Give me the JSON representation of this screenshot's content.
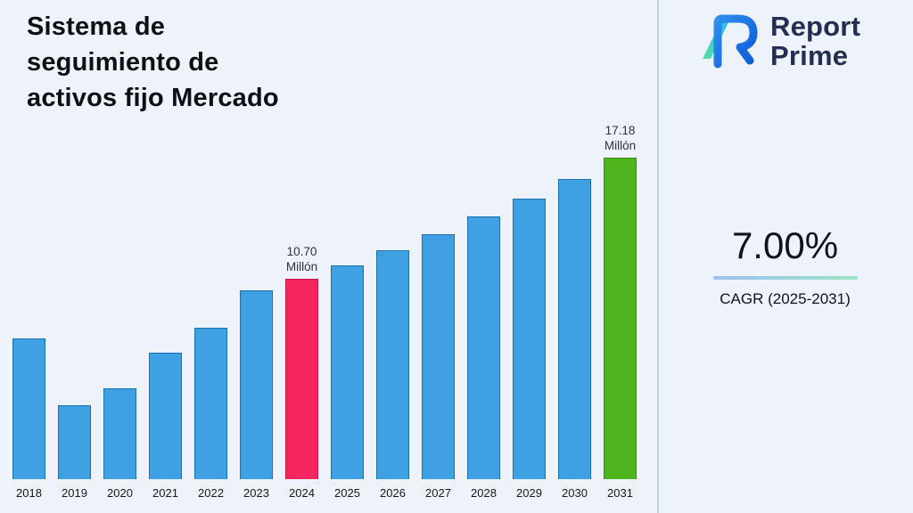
{
  "title": {
    "full": "Sistema de seguimiento de activos fijo Mercado",
    "line1": "Sistema de",
    "line2": "seguimiento de",
    "line3": "activos fijo Mercado"
  },
  "brand": {
    "line1": "Report",
    "line2": "Prime"
  },
  "stats": {
    "cagr_value": "7.00%",
    "cagr_label": "CAGR (2025-2031)"
  },
  "colors": {
    "background": "#edf2fb",
    "divider": "#b9cff1",
    "bar_blue": "#3fa0e2",
    "bar_pink": "#f5265f",
    "bar_green": "#4eb51d",
    "brand_navy": "#242e52"
  },
  "chart_data": {
    "type": "bar",
    "title": "Sistema de seguimiento de activos fijo Mercado",
    "unit": "Millón",
    "xlabel": "",
    "ylabel": "",
    "ylim": [
      0,
      18
    ],
    "gridlines": false,
    "legend": false,
    "categories": [
      "2018",
      "2019",
      "2020",
      "2021",
      "2022",
      "2023",
      "2024",
      "2025",
      "2026",
      "2027",
      "2028",
      "2029",
      "2030",
      "2031"
    ],
    "values": [
      7.5,
      3.95,
      4.85,
      6.75,
      8.1,
      10.1,
      10.7,
      11.45,
      12.25,
      13.11,
      14.03,
      15.01,
      16.06,
      17.18
    ],
    "bar_color": "#3fa0e2",
    "bar_border_color": "#1a6fae",
    "highlights": [
      {
        "category": "2024",
        "label": "10.70\nMillón",
        "color": "#f5265f",
        "border_color": "#c2184a"
      },
      {
        "category": "2031",
        "label": "17.18\nMillón",
        "color": "#4eb51d",
        "border_color": "#3a8c14"
      }
    ]
  }
}
